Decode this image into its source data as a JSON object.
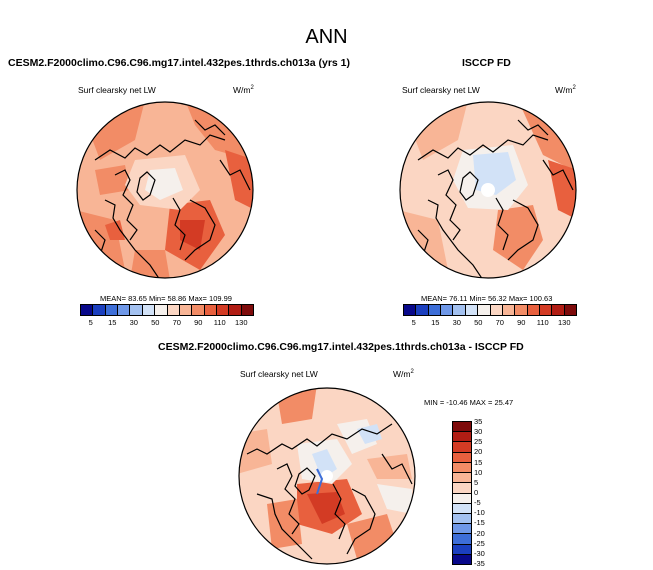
{
  "page_title": "ANN",
  "panel_left": {
    "title": "CESM2.F2000climo.C96.C96.mg17.intel.432pes.1thrds.ch013a (yrs 1)",
    "variable": "Surf clearsky net LW",
    "units_base": "W/m",
    "units_exp": "2",
    "stats": "MEAN= 83.65  Min= 58.86  Max= 109.99"
  },
  "panel_right": {
    "title": "ISCCP FD",
    "variable": "Surf clearsky net LW",
    "units_base": "W/m",
    "units_exp": "2",
    "stats": "MEAN= 76.11  Min= 56.32  Max= 100.63"
  },
  "panel_diff": {
    "title": "CESM2.F2000climo.C96.C96.mg17.intel.432pes.1thrds.ch013a - ISCCP FD",
    "variable": "Surf clearsky net LW",
    "units_base": "W/m",
    "units_exp": "2",
    "stats": "MIN = -10.46  MAX =  25.47"
  },
  "colorbar_abs": {
    "labels": [
      "5",
      "15",
      "30",
      "50",
      "70",
      "90",
      "110",
      "130"
    ],
    "colors": [
      "#08088a",
      "#1b3fbf",
      "#3d6ed8",
      "#6f98e8",
      "#a3c1f0",
      "#d2e2f7",
      "#f5f0ec",
      "#fbd6c3",
      "#f8b596",
      "#f28c66",
      "#e8603e",
      "#d33b24",
      "#b11d14",
      "#7e0b0b"
    ]
  },
  "colorbar_diff": {
    "labels": [
      "35",
      "30",
      "25",
      "20",
      "15",
      "10",
      "5",
      "0",
      "-5",
      "-10",
      "-15",
      "-20",
      "-25",
      "-30",
      "-35"
    ],
    "colors": [
      "#7e0b0b",
      "#b11d14",
      "#d33b24",
      "#e8603e",
      "#f28c66",
      "#f8b596",
      "#fbd6c3",
      "#f5f0ec",
      "#d2e2f7",
      "#a3c1f0",
      "#6f98e8",
      "#3d6ed8",
      "#1b3fbf",
      "#08088a"
    ]
  }
}
